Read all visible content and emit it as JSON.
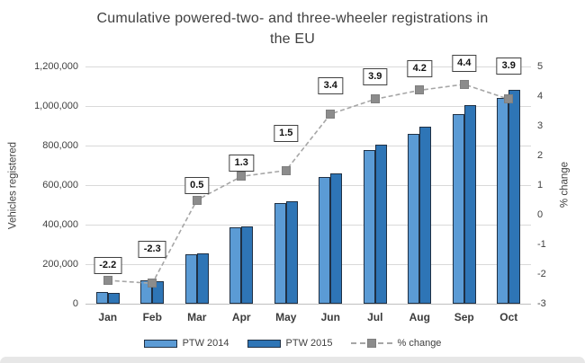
{
  "header": {
    "title_line1": "Cumulative powered-two- and three-wheeler registrations in",
    "title_line2": "the EU"
  },
  "axes": {
    "left": {
      "label": "Vehicles registered",
      "ticks": [
        "0",
        "200,000",
        "400,000",
        "600,000",
        "800,000",
        "1,000,000",
        "1,200,000"
      ]
    },
    "right": {
      "label": "% change",
      "ticks": [
        "-3",
        "-2",
        "-1",
        "0",
        "1",
        "2",
        "3",
        "4",
        "5"
      ]
    }
  },
  "legend": [
    {
      "label": "PTW 2014",
      "swatch": "bar",
      "color": "#5b9bd5"
    },
    {
      "label": "PTW 2015",
      "swatch": "bar",
      "color": "#2e75b6"
    },
    {
      "label": "% change",
      "swatch": "dashed-line-marker",
      "color": "#a6a6a6"
    }
  ],
  "colors": {
    "bar_2014": "#5b9bd5",
    "bar_2015": "#2e75b6",
    "bar_border": "#1f3044",
    "line": "#a6a6a6",
    "marker": "#8c8c8c",
    "gridline": "#d9d9d9",
    "label_box_border": "#404040",
    "text": "#404040"
  },
  "chart_data": {
    "type": "combo-bar-line",
    "title": "Cumulative powered-two- and three-wheeler registrations in the EU",
    "categories": [
      "Jan",
      "Feb",
      "Mar",
      "Apr",
      "May",
      "Jun",
      "Jul",
      "Aug",
      "Sep",
      "Oct"
    ],
    "series": [
      {
        "name": "PTW 2014",
        "type": "bar",
        "axis": "left",
        "color": "#5b9bd5",
        "values": [
          59000,
          120000,
          253000,
          388000,
          510000,
          640000,
          776000,
          859000,
          961000,
          1040000
        ]
      },
      {
        "name": "PTW 2015",
        "type": "bar",
        "axis": "left",
        "color": "#2e75b6",
        "values": [
          57700,
          117200,
          254300,
          393000,
          517700,
          661800,
          806300,
          895100,
          1003300,
          1080600
        ]
      },
      {
        "name": "% change",
        "type": "line",
        "axis": "right",
        "color": "#a6a6a6",
        "values": [
          -2.2,
          -2.3,
          0.5,
          1.3,
          1.5,
          3.4,
          3.9,
          4.2,
          4.4,
          3.9
        ],
        "data_labels": [
          "-2.2",
          "-2.3",
          "0.5",
          "1.3",
          "1.5",
          "3.4",
          "3.9",
          "4.2",
          "4.4",
          "3.9"
        ]
      }
    ],
    "xlabel": "",
    "ylabel": "Vehicles registered",
    "ylabel_right": "% change",
    "ylim_left": [
      0,
      1200000
    ],
    "ylim_right": [
      -3,
      5
    ],
    "grid": true,
    "legend_position": "bottom"
  }
}
